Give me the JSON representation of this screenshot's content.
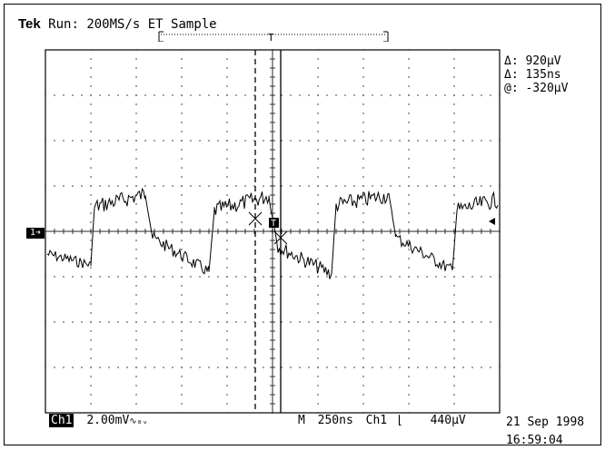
{
  "header": {
    "brand": "Tek",
    "status": "Run: 200MS/s ET Sample"
  },
  "cursors": {
    "readouts": [
      "Δ: 920µV",
      "Δ: 135ns",
      "@: -320µV"
    ]
  },
  "trigger": {
    "marker_label": "T"
  },
  "channel": {
    "marker": "1➔",
    "badge": "Ch1",
    "scale": "2.00mV",
    "bandwidth_symbol": "∿₈ᵥ"
  },
  "timebase": {
    "prefix": "M",
    "value": "250ns",
    "trigger_source": "Ch1",
    "slope_symbol": "⌊",
    "trigger_level": "440µV"
  },
  "datetime": {
    "date": "21 Sep 1998",
    "time": "16:59:04"
  }
}
